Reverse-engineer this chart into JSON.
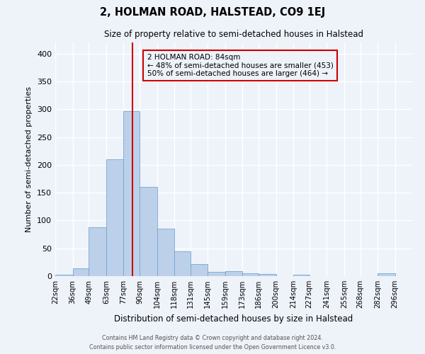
{
  "title": "2, HOLMAN ROAD, HALSTEAD, CO9 1EJ",
  "subtitle": "Size of property relative to semi-detached houses in Halstead",
  "xlabel": "Distribution of semi-detached houses by size in Halstead",
  "ylabel": "Number of semi-detached properties",
  "bin_labels": [
    "22sqm",
    "36sqm",
    "49sqm",
    "63sqm",
    "77sqm",
    "90sqm",
    "104sqm",
    "118sqm",
    "131sqm",
    "145sqm",
    "159sqm",
    "173sqm",
    "186sqm",
    "200sqm",
    "214sqm",
    "227sqm",
    "241sqm",
    "255sqm",
    "268sqm",
    "282sqm",
    "296sqm"
  ],
  "bin_edges": [
    22,
    36,
    49,
    63,
    77,
    90,
    104,
    118,
    131,
    145,
    159,
    173,
    186,
    200,
    214,
    227,
    241,
    255,
    268,
    282,
    296
  ],
  "bar_heights": [
    3,
    14,
    88,
    210,
    297,
    161,
    85,
    44,
    22,
    8,
    9,
    5,
    4,
    0,
    3,
    0,
    0,
    0,
    0,
    5
  ],
  "bar_color": "#bdd0e9",
  "bar_edge_color": "#6fa8d4",
  "property_size": 84,
  "vline_color": "#cc0000",
  "ylim": [
    0,
    420
  ],
  "yticks": [
    0,
    50,
    100,
    150,
    200,
    250,
    300,
    350,
    400
  ],
  "annotation_title": "2 HOLMAN ROAD: 84sqm",
  "annotation_line1": "← 48% of semi-detached houses are smaller (453)",
  "annotation_line2": "50% of semi-detached houses are larger (464) →",
  "annotation_box_color": "#cc0000",
  "footer_line1": "Contains HM Land Registry data © Crown copyright and database right 2024.",
  "footer_line2": "Contains public sector information licensed under the Open Government Licence v3.0.",
  "background_color": "#eef2f9",
  "grid_color": "#ffffff"
}
